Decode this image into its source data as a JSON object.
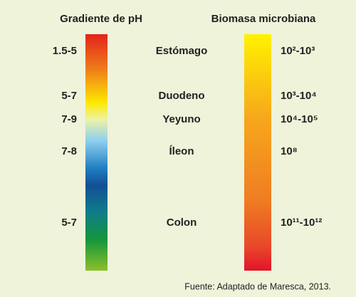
{
  "header": {
    "ph_title": "Gradiente de pH",
    "biomass_title": "Biomasa microbiana"
  },
  "rows": [
    {
      "ph": "1.5-5",
      "segment": "Estómago",
      "biomass": "10²-10³"
    },
    {
      "ph": "5-7",
      "segment": "Duodeno",
      "biomass": "10³-10⁴"
    },
    {
      "ph": "7-9",
      "segment": "Yeyuno",
      "biomass": "10⁴-10⁵"
    },
    {
      "ph": "7-8",
      "segment": "Íleon",
      "biomass": "10⁸"
    },
    {
      "ph": "5-7",
      "segment": "Colon",
      "biomass": "10¹¹-10¹²"
    }
  ],
  "source": "Fuente: Adaptado de Maresca, 2013."
}
